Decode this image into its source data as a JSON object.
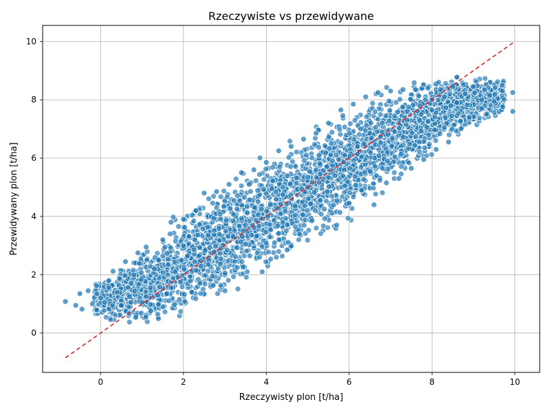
{
  "chart_data": {
    "type": "scatter",
    "title": "Rzeczywiste vs przewidywane",
    "xlabel": "Rzeczywisty plon [t/ha]",
    "ylabel": "Przewidywany plon [t/ha]",
    "xlim": [
      -1.4,
      10.6
    ],
    "ylim": [
      -1.35,
      10.55
    ],
    "xticks": [
      0,
      2,
      4,
      6,
      8,
      10
    ],
    "yticks": [
      0,
      2,
      4,
      6,
      8,
      10
    ],
    "x_tick_labels": [
      "0",
      "2",
      "4",
      "6",
      "8",
      "10"
    ],
    "y_tick_labels": [
      "0",
      "2",
      "4",
      "6",
      "8",
      "10"
    ],
    "grid": true,
    "point_color": "#1f77b4",
    "reference_line_color": "#d62728",
    "reference_line": {
      "x": [
        -0.85,
        10.0
      ],
      "y": [
        -0.85,
        10.0
      ],
      "style": "dashed"
    },
    "points": {
      "x": [
        -0.85,
        -0.6,
        -0.5,
        -0.45,
        -0.3,
        -0.2,
        -0.1,
        0.0,
        0.1,
        0.2,
        0.3,
        0.4,
        0.5,
        0.6,
        0.7,
        0.8,
        0.9,
        1.0,
        1.1,
        1.2,
        1.3,
        1.4,
        1.5,
        1.6,
        1.7,
        1.8,
        1.9,
        2.0,
        2.1,
        2.2,
        2.3,
        2.4,
        2.5,
        2.6,
        2.7,
        2.8,
        2.9,
        3.0,
        3.1,
        3.2,
        3.3,
        3.4,
        3.5,
        3.6,
        3.7,
        3.8,
        3.9,
        4.0,
        4.1,
        4.2,
        4.3,
        4.4,
        4.5,
        4.6,
        4.7,
        4.8,
        4.9,
        5.0,
        5.1,
        5.2,
        5.3,
        5.4,
        5.5,
        5.6,
        5.7,
        5.8,
        5.9,
        6.0,
        6.1,
        6.2,
        6.3,
        6.4,
        6.5,
        6.6,
        6.7,
        6.8,
        6.9,
        7.0,
        7.1,
        7.2,
        7.3,
        7.4,
        7.5,
        7.6,
        7.7,
        7.8,
        7.9,
        8.0,
        8.1,
        8.2,
        8.3,
        8.4,
        8.5,
        8.6,
        8.7,
        8.8,
        8.9,
        9.0,
        9.2,
        9.4,
        9.5,
        9.7,
        9.95,
        9.95,
        0.2,
        0.8,
        1.4,
        2.0,
        2.6,
        3.2,
        3.8,
        4.4,
        5.0,
        5.6,
        6.2,
        6.8,
        7.4,
        8.0,
        8.6,
        9.2,
        0.5,
        1.1,
        1.7,
        2.3,
        2.9,
        3.5,
        4.1,
        4.7,
        5.3,
        5.9,
        6.5,
        7.1,
        7.7,
        8.3,
        8.9
      ],
      "y": [
        1.08,
        0.95,
        1.35,
        0.82,
        1.45,
        1.0,
        1.62,
        1.2,
        1.05,
        1.8,
        2.12,
        1.4,
        1.1,
        2.45,
        1.25,
        1.9,
        2.75,
        1.05,
        2.95,
        1.55,
        2.2,
        0.98,
        3.2,
        1.35,
        3.8,
        2.1,
        1.15,
        3.9,
        2.65,
        1.4,
        4.2,
        1.7,
        4.8,
        2.35,
        1.95,
        4.85,
        2.9,
        1.45,
        5.1,
        3.3,
        2.25,
        5.5,
        3.7,
        2.65,
        5.6,
        4.05,
        2.1,
        5.85,
        4.4,
        3.1,
        6.25,
        4.75,
        2.85,
        6.4,
        4.35,
        3.4,
        6.65,
        5.0,
        3.85,
        6.85,
        5.45,
        4.25,
        7.2,
        5.75,
        3.7,
        7.65,
        6.1,
        4.45,
        7.85,
        6.5,
        4.9,
        8.1,
        6.85,
        4.4,
        8.25,
        7.2,
        5.15,
        8.3,
        7.45,
        5.3,
        8.35,
        7.6,
        5.65,
        8.35,
        7.8,
        5.95,
        8.4,
        8.0,
        6.3,
        8.35,
        8.1,
        6.55,
        8.45,
        7.9,
        7.0,
        8.2,
        7.35,
        8.45,
        7.7,
        8.15,
        7.95,
        8.3,
        8.25,
        7.6,
        1.55,
        2.0,
        2.5,
        3.0,
        3.35,
        3.85,
        4.5,
        5.0,
        5.35,
        5.9,
        6.4,
        6.9,
        7.3,
        7.65,
        7.9,
        8.0,
        0.95,
        1.25,
        1.55,
        2.15,
        2.55,
        3.05,
        3.55,
        4.05,
        4.55,
        5.05,
        5.55,
        6.05,
        6.55,
        7.05,
        7.4
      ]
    },
    "cloud_center_x": [
      -0.1,
      0.6,
      1.3,
      2.0,
      2.7,
      3.4,
      4.1,
      4.8,
      5.5,
      6.2,
      6.9,
      7.6,
      8.3,
      9.0,
      9.6
    ],
    "cloud_center_y": [
      1.15,
      1.35,
      1.75,
      2.35,
      2.95,
      3.55,
      4.15,
      4.75,
      5.35,
      5.95,
      6.55,
      7.15,
      7.65,
      7.95,
      8.05
    ],
    "cloud_spread_y": [
      0.35,
      0.55,
      0.85,
      1.05,
      1.1,
      1.15,
      1.15,
      1.15,
      1.15,
      1.1,
      1.0,
      0.85,
      0.65,
      0.5,
      0.35
    ]
  }
}
